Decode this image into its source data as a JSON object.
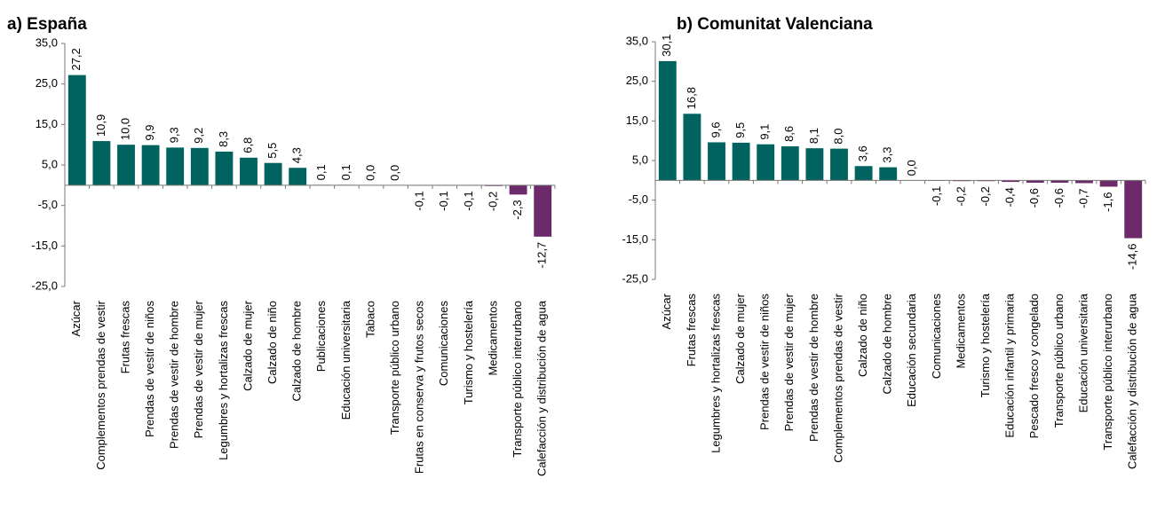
{
  "chart_data": [
    {
      "type": "bar",
      "title": "a) España",
      "categories": [
        "Azúcar",
        "Complementos prendas de vestir",
        "Frutas frescas",
        "Prendas de vestir de niños",
        "Prendas de vestir de hombre",
        "Prendas de vestir de mujer",
        "Legumbres y hortalizas frescas",
        "Calzado de mujer",
        "Calzado de niño",
        "Calzado de hombre",
        "Publicaciones",
        "Educación universitaria",
        "Tabaco",
        "Transporte público urbano",
        "Frutas en conserva y frutos secos",
        "Comunicaciones",
        "Turismo y hostelería",
        "Medicamentos",
        "Transporte público interurbano",
        "Calefacción y distribución de agua"
      ],
      "values": [
        27.2,
        10.9,
        10.0,
        9.9,
        9.3,
        9.2,
        8.3,
        6.8,
        5.5,
        4.3,
        0.1,
        0.1,
        0.0,
        0.0,
        -0.1,
        -0.1,
        -0.1,
        -0.2,
        -2.3,
        -12.7
      ],
      "value_labels": [
        "27,2",
        "10,9",
        "10,0",
        "9,9",
        "9,3",
        "9,2",
        "8,3",
        "6,8",
        "5,5",
        "4,3",
        "0,1",
        "0,1",
        "0,0",
        "0,0",
        "-0,1",
        "-0,1",
        "-0,1",
        "-0,2",
        "-2,3",
        "-12,7"
      ],
      "color": "#00635f",
      "negative_color": "#6c2a6a",
      "ylim": [
        -25,
        35
      ],
      "yticks": [
        {
          "value": -25,
          "label": "-25,0"
        },
        {
          "value": -15,
          "label": "-15,0"
        },
        {
          "value": -5,
          "label": "-5,0"
        },
        {
          "value": 5,
          "label": "5,0"
        },
        {
          "value": 15,
          "label": "15,0"
        },
        {
          "value": 25,
          "label": "25,0"
        },
        {
          "value": 35,
          "label": "35,0"
        }
      ]
    },
    {
      "type": "bar",
      "title": "b) Comunitat Valenciana",
      "categories": [
        "Azúcar",
        "Frutas frescas",
        "Legumbres y hortalizas frescas",
        "Calzado de mujer",
        "Prendas de vestir de niños",
        "Prendas de vestir de mujer",
        "Prendas de vestir de hombre",
        "Complementos prendas de vestir",
        "Calzado de niño",
        "Calzado de hombre",
        "Educación secundaria",
        "Comunicaciones",
        "Medicamentos",
        "Turismo y hostelería",
        "Educación infantil y primaria",
        "Pescado fresco y congelado",
        "Transporte público urbano",
        "Educación universitaria",
        "Transporte público interurbano",
        "Calefacción y distribución de agua"
      ],
      "values": [
        30.1,
        16.8,
        9.6,
        9.5,
        9.1,
        8.6,
        8.1,
        8.0,
        3.6,
        3.3,
        0.0,
        -0.1,
        -0.2,
        -0.2,
        -0.4,
        -0.6,
        -0.6,
        -0.7,
        -1.6,
        -14.6
      ],
      "value_labels": [
        "30,1",
        "16,8",
        "9,6",
        "9,5",
        "9,1",
        "8,6",
        "8,1",
        "8,0",
        "3,6",
        "3,3",
        "0,0",
        "-0,1",
        "-0,2",
        "-0,2",
        "-0,4",
        "-0,6",
        "-0,6",
        "-0,7",
        "-1,6",
        "-14,6"
      ],
      "color": "#00635f",
      "negative_color": "#6c2a6a",
      "ylim": [
        -25,
        35
      ],
      "yticks": [
        {
          "value": -25,
          "label": "-25,0"
        },
        {
          "value": -15,
          "label": "-15,0"
        },
        {
          "value": -5,
          "label": "-5,0"
        },
        {
          "value": 5,
          "label": "5,0"
        },
        {
          "value": 15,
          "label": "15,0"
        },
        {
          "value": 25,
          "label": "25,0"
        },
        {
          "value": 35,
          "label": "35,0"
        }
      ]
    }
  ]
}
